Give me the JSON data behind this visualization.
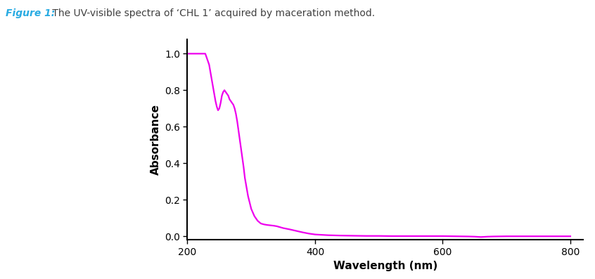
{
  "title_figure": "Figure 1:",
  "title_text": " The UV-visible spectra of ‘CHL 1’ acquired by maceration method.",
  "title_color_bold": "#29ABE2",
  "title_color_normal": "#404040",
  "xlabel": "Wavelength (nm)",
  "ylabel": "Absorbance",
  "xlim": [
    200,
    820
  ],
  "ylim": [
    -0.02,
    1.08
  ],
  "xticks": [
    200,
    400,
    600,
    800
  ],
  "yticks": [
    0,
    0.2,
    0.4,
    0.6,
    0.8,
    1
  ],
  "line_color": "#EE00EE",
  "line_width": 1.6,
  "background_color": "#FFFFFF",
  "spectrum": {
    "wavelengths": [
      200,
      202,
      204,
      206,
      208,
      210,
      212,
      214,
      216,
      218,
      220,
      222,
      224,
      226,
      228,
      230,
      232,
      234,
      236,
      238,
      240,
      242,
      244,
      246,
      248,
      250,
      252,
      254,
      256,
      258,
      260,
      262,
      264,
      266,
      268,
      270,
      272,
      274,
      276,
      278,
      280,
      282,
      284,
      286,
      288,
      290,
      295,
      300,
      305,
      310,
      315,
      320,
      325,
      330,
      335,
      340,
      350,
      360,
      370,
      380,
      390,
      400,
      420,
      440,
      460,
      480,
      500,
      520,
      540,
      560,
      580,
      600,
      620,
      640,
      650,
      655,
      660,
      665,
      670,
      680,
      700,
      720,
      750,
      800
    ],
    "absorbance": [
      1.0,
      1.0,
      1.0,
      1.0,
      1.0,
      1.0,
      1.0,
      1.0,
      1.0,
      1.0,
      1.0,
      1.0,
      1.0,
      1.0,
      1.0,
      0.98,
      0.96,
      0.94,
      0.9,
      0.86,
      0.82,
      0.78,
      0.74,
      0.71,
      0.69,
      0.7,
      0.73,
      0.77,
      0.79,
      0.8,
      0.79,
      0.78,
      0.77,
      0.75,
      0.74,
      0.73,
      0.72,
      0.7,
      0.67,
      0.63,
      0.58,
      0.53,
      0.48,
      0.43,
      0.38,
      0.32,
      0.22,
      0.15,
      0.11,
      0.085,
      0.07,
      0.065,
      0.062,
      0.06,
      0.058,
      0.055,
      0.045,
      0.038,
      0.03,
      0.022,
      0.015,
      0.01,
      0.006,
      0.004,
      0.003,
      0.002,
      0.002,
      0.001,
      0.001,
      0.001,
      0.001,
      0.001,
      0.0,
      -0.001,
      -0.002,
      -0.003,
      -0.004,
      -0.003,
      -0.002,
      -0.001,
      0.0,
      0.0,
      0.0,
      0.0
    ]
  }
}
